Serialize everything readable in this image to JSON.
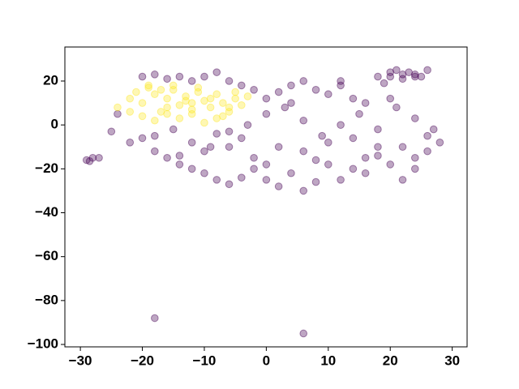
{
  "chart_data": {
    "type": "scatter",
    "xlim": [
      -32.5,
      32.4
    ],
    "ylim": [
      -101.1,
      35.5
    ],
    "xticks": [
      {
        "value": -30,
        "label": "−30"
      },
      {
        "value": -20,
        "label": "−20"
      },
      {
        "value": -10,
        "label": "−10"
      },
      0,
      10,
      20,
      30
    ],
    "yticks": [
      {
        "value": -100,
        "label": "−100"
      },
      {
        "value": -80,
        "label": "−80"
      },
      {
        "value": -60,
        "label": "−60"
      },
      {
        "value": -40,
        "label": "−40"
      },
      {
        "value": -20,
        "label": "−20"
      },
      0,
      20
    ],
    "series": [
      {
        "color": "#440154",
        "x": [
          -29,
          -28,
          -28.5,
          -27,
          -25,
          -24,
          -22,
          -20,
          -18,
          -16,
          -14,
          -12,
          -10,
          -8,
          -6,
          -4,
          -2,
          0,
          2,
          4,
          6,
          8,
          10,
          12,
          14,
          16,
          18,
          20,
          22,
          24,
          26,
          28,
          -20,
          -18,
          -16,
          -14,
          -12,
          -10,
          -8,
          -6,
          -4,
          -2,
          0,
          2,
          4,
          6,
          8,
          10,
          12,
          14,
          16,
          18,
          20,
          22,
          24,
          26,
          -18,
          -15,
          -12,
          -9,
          -6,
          -3,
          0,
          3,
          6,
          9,
          12,
          15,
          18,
          21,
          24,
          27,
          -14,
          -10,
          -6,
          -2,
          2,
          6,
          10,
          14,
          18,
          22,
          26,
          -8,
          0,
          8,
          16,
          24,
          4,
          12,
          20,
          -4,
          20,
          21,
          22,
          23,
          24,
          25,
          19,
          -18,
          6
        ],
        "values": [
          -16,
          -15,
          -16.5,
          -15,
          -3,
          5,
          -8,
          -6,
          -12,
          -15,
          -18,
          -20,
          -22,
          -25,
          -27,
          -24,
          -20,
          -25,
          -28,
          -22,
          -30,
          -26,
          -18,
          -25,
          -20,
          -15,
          -10,
          -18,
          -25,
          -20,
          -12,
          -8,
          22,
          23,
          21,
          22,
          20,
          22,
          24,
          20,
          18,
          16,
          12,
          15,
          18,
          20,
          16,
          14,
          18,
          12,
          10,
          22,
          24,
          23,
          22,
          25,
          -5,
          -2,
          -8,
          -10,
          -3,
          0,
          5,
          8,
          2,
          -5,
          0,
          5,
          -2,
          8,
          3,
          -2,
          -14,
          -12,
          -10,
          -15,
          -10,
          -12,
          -8,
          -6,
          -14,
          -10,
          -5,
          -4,
          -18,
          -16,
          -22,
          -15,
          10,
          20,
          12,
          -6,
          22,
          25,
          21,
          24,
          23,
          22,
          19,
          -88,
          -95
        ]
      },
      {
        "color": "#fde725",
        "x": [
          -24,
          -22,
          -21,
          -20,
          -19,
          -18,
          -17,
          -16,
          -15,
          -14,
          -13,
          -12,
          -11,
          -10,
          -9,
          -8,
          -7,
          -6,
          -5,
          -4,
          -20,
          -18,
          -16,
          -14,
          -12,
          -10,
          -8,
          -6,
          -22,
          -19,
          -17,
          -15,
          -13,
          -11,
          -9,
          -7,
          -5,
          -3,
          -12,
          -16
        ],
        "values": [
          8,
          12,
          15,
          10,
          18,
          14,
          6,
          12,
          16,
          9,
          13,
          5,
          15,
          11,
          8,
          14,
          10,
          6,
          12,
          9,
          4,
          2,
          5,
          3,
          7,
          1,
          3,
          8,
          6,
          17,
          16,
          18,
          11,
          17,
          12,
          4,
          15,
          13,
          10,
          8
        ]
      }
    ]
  }
}
